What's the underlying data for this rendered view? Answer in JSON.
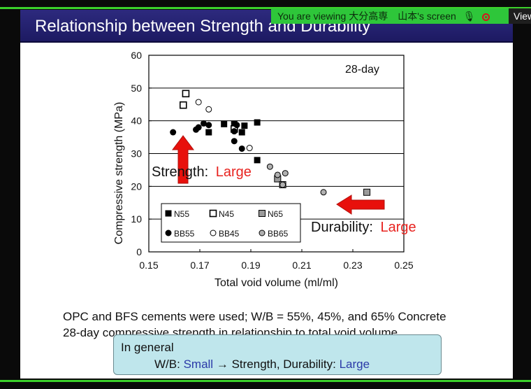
{
  "screen_share": {
    "banner_text": "You are viewing 大分高専　山本's screen",
    "view_label": "View",
    "colors": {
      "border": "#3bd12b",
      "banner": "#2ec63a"
    }
  },
  "slide": {
    "title": "Relationship between Strength and Durability",
    "caption_line1": "OPC and BFS cements were used; W/B = 55%, 45%, and 65% Concrete",
    "caption_line2": "28-day compressive strength in relationship to total void volume.",
    "summary": {
      "heading": "In general",
      "wb_label": "W/B:",
      "small": "Small",
      "arrow": "→",
      "middle": "Strength, Durability:",
      "large": "Large"
    }
  },
  "chart_data": {
    "type": "scatter",
    "annotation": "28-day",
    "xlabel": "Total void volume (ml/ml)",
    "ylabel": "Compressive strength (MPa)",
    "xlim": [
      0.15,
      0.25
    ],
    "ylim": [
      0,
      60
    ],
    "xticks": [
      "0.15",
      "0.17",
      "0.19",
      "0.21",
      "0.23",
      "0.25"
    ],
    "yticks": [
      "0",
      "10",
      "20",
      "30",
      "40",
      "50",
      "60"
    ],
    "grid": "horizontal",
    "legend_placement": "bottom-left",
    "strength_label": "Strength:",
    "strength_value": "Large",
    "durability_label": "Durability:",
    "durability_value": "Large",
    "series": [
      {
        "name": "N55",
        "marker": "square",
        "fill": "#000000",
        "stroke": "#000000",
        "points": [
          [
            0.1735,
            36.5
          ],
          [
            0.1795,
            39.0
          ],
          [
            0.1835,
            39.0
          ],
          [
            0.1865,
            36.5
          ],
          [
            0.1875,
            38.5
          ],
          [
            0.1925,
            39.5
          ],
          [
            0.1925,
            28.0
          ]
        ]
      },
      {
        "name": "N45",
        "marker": "square",
        "fill": "#ffffff",
        "stroke": "#000000",
        "points": [
          [
            0.1635,
            44.8
          ],
          [
            0.1645,
            48.3
          ],
          [
            0.1835,
            37.5
          ]
        ]
      },
      {
        "name": "N65",
        "marker": "square",
        "fill": "#9a9a9a",
        "stroke": "#000000",
        "points": [
          [
            0.2005,
            22.3
          ],
          [
            0.2025,
            20.5
          ],
          [
            0.2355,
            18.2
          ]
        ]
      },
      {
        "name": "BB55",
        "marker": "circle",
        "fill": "#000000",
        "stroke": "#000000",
        "points": [
          [
            0.1595,
            36.5
          ],
          [
            0.1685,
            37.3
          ],
          [
            0.1695,
            38.0
          ],
          [
            0.1715,
            39.2
          ],
          [
            0.1735,
            38.7
          ],
          [
            0.1835,
            33.8
          ],
          [
            0.1845,
            38.7
          ],
          [
            0.1865,
            31.5
          ],
          [
            0.1835,
            36.8
          ]
        ]
      },
      {
        "name": "BB45",
        "marker": "circle",
        "fill": "#ffffff",
        "stroke": "#000000",
        "points": [
          [
            0.1695,
            45.7
          ],
          [
            0.1735,
            43.5
          ],
          [
            0.1895,
            31.7
          ]
        ]
      },
      {
        "name": "BB65",
        "marker": "circle",
        "fill": "#b0b0b0",
        "stroke": "#000000",
        "points": [
          [
            0.1975,
            26.0
          ],
          [
            0.2005,
            23.5
          ],
          [
            0.2025,
            20.5
          ],
          [
            0.2035,
            24.0
          ],
          [
            0.2185,
            18.2
          ]
        ]
      }
    ]
  }
}
